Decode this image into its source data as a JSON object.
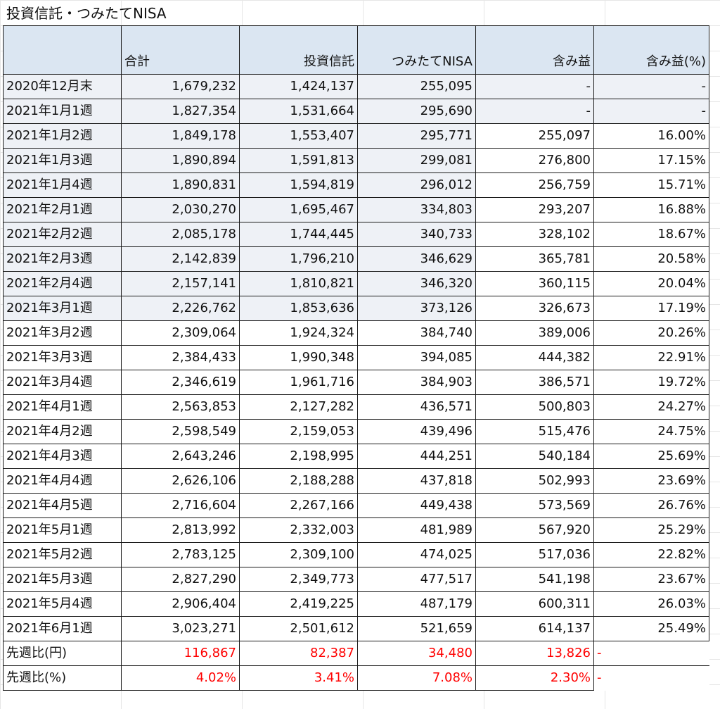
{
  "sheet": {
    "title": "投資信託・つみたてNISA"
  },
  "table": {
    "headers": [
      "",
      "合計",
      "投資信託",
      "つみたてNISA",
      "含み益",
      "含み益(%)"
    ],
    "rows": [
      [
        "2020年12月末",
        "1,679,232",
        "1,424,137",
        "255,095",
        "-",
        "-"
      ],
      [
        "2021年1月1週",
        "1,827,354",
        "1,531,664",
        "295,690",
        "-",
        "-"
      ],
      [
        "2021年1月2週",
        "1,849,178",
        "1,553,407",
        "295,771",
        "255,097",
        "16.00%"
      ],
      [
        "2021年1月3週",
        "1,890,894",
        "1,591,813",
        "299,081",
        "276,800",
        "17.15%"
      ],
      [
        "2021年1月4週",
        "1,890,831",
        "1,594,819",
        "296,012",
        "256,759",
        "15.71%"
      ],
      [
        "2021年2月1週",
        "2,030,270",
        "1,695,467",
        "334,803",
        "293,207",
        "16.88%"
      ],
      [
        "2021年2月2週",
        "2,085,178",
        "1,744,445",
        "340,733",
        "328,102",
        "18.67%"
      ],
      [
        "2021年2月3週",
        "2,142,839",
        "1,796,210",
        "346,629",
        "365,781",
        "20.58%"
      ],
      [
        "2021年2月4週",
        "2,157,141",
        "1,810,821",
        "346,320",
        "360,115",
        "20.04%"
      ],
      [
        "2021年3月1週",
        "2,226,762",
        "1,853,636",
        "373,126",
        "326,673",
        "17.19%"
      ],
      [
        "2021年3月2週",
        "2,309,064",
        "1,924,324",
        "384,740",
        "389,006",
        "20.26%"
      ],
      [
        "2021年3月3週",
        "2,384,433",
        "1,990,348",
        "394,085",
        "444,382",
        "22.91%"
      ],
      [
        "2021年3月4週",
        "2,346,619",
        "1,961,716",
        "384,903",
        "386,571",
        "19.72%"
      ],
      [
        "2021年4月1週",
        "2,563,853",
        "2,127,282",
        "436,571",
        "500,803",
        "24.27%"
      ],
      [
        "2021年4月2週",
        "2,598,549",
        "2,159,053",
        "439,496",
        "515,476",
        "24.75%"
      ],
      [
        "2021年4月3週",
        "2,643,246",
        "2,198,995",
        "444,251",
        "540,184",
        "25.69%"
      ],
      [
        "2021年4月4週",
        "2,626,106",
        "2,188,288",
        "437,818",
        "502,993",
        "23.69%"
      ],
      [
        "2021年4月5週",
        "2,716,604",
        "2,267,166",
        "449,438",
        "573,569",
        "26.76%"
      ],
      [
        "2021年5月1週",
        "2,813,992",
        "2,332,003",
        "481,989",
        "567,920",
        "25.29%"
      ],
      [
        "2021年5月2週",
        "2,783,125",
        "2,309,100",
        "474,025",
        "517,036",
        "22.82%"
      ],
      [
        "2021年5月3週",
        "2,827,290",
        "2,349,773",
        "477,517",
        "541,198",
        "23.67%"
      ],
      [
        "2021年5月4週",
        "2,906,404",
        "2,419,225",
        "487,179",
        "600,311",
        "26.03%"
      ],
      [
        "2021年6月1週",
        "3,023,271",
        "2,501,612",
        "521,659",
        "614,137",
        "25.49%"
      ]
    ],
    "footer": [
      [
        "先週比(円)",
        "116,867",
        "82,387",
        "34,480",
        "13,826",
        "-"
      ],
      [
        "先週比(%)",
        "4.02%",
        "3.41%",
        "7.08%",
        "2.30%",
        "-"
      ]
    ]
  },
  "colors": {
    "header_bg": "#dbe6f2",
    "shaded_bg": "#eef1f6",
    "negative_text": "#ff0000",
    "border": "#1a1a1a"
  }
}
